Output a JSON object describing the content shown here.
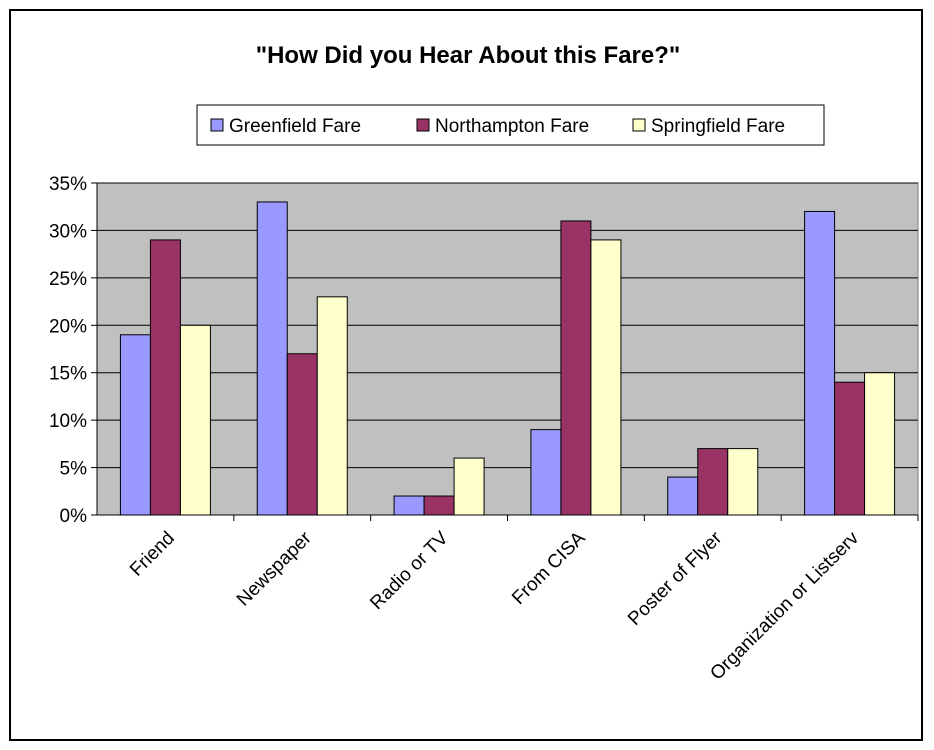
{
  "chart_data": {
    "type": "bar",
    "title": "\"How Did you Hear About this Fare?\"",
    "categories": [
      "Friend",
      "Newspaper",
      "Radio or TV",
      "From CISA",
      "Poster of Flyer",
      "Organization or Listserv"
    ],
    "series": [
      {
        "name": "Greenfield Fare",
        "values": [
          19,
          33,
          2,
          9,
          4,
          32
        ],
        "color": "#9999ff"
      },
      {
        "name": "Northampton Fare",
        "values": [
          29,
          17,
          2,
          31,
          7,
          14
        ],
        "color": "#993366"
      },
      {
        "name": "Springfield Fare",
        "values": [
          20,
          23,
          6,
          29,
          7,
          15
        ],
        "color": "#ffffcc"
      }
    ],
    "ylim": [
      0,
      35
    ],
    "yticks": [
      "0%",
      "5%",
      "10%",
      "15%",
      "20%",
      "25%",
      "30%",
      "35%"
    ],
    "ytick_values": [
      0,
      5,
      10,
      15,
      20,
      25,
      30,
      35
    ],
    "y_unit": "%",
    "xlabel": "",
    "ylabel": "",
    "grid": true,
    "plot_background": "#c0c0c0",
    "legend_position": "top"
  }
}
